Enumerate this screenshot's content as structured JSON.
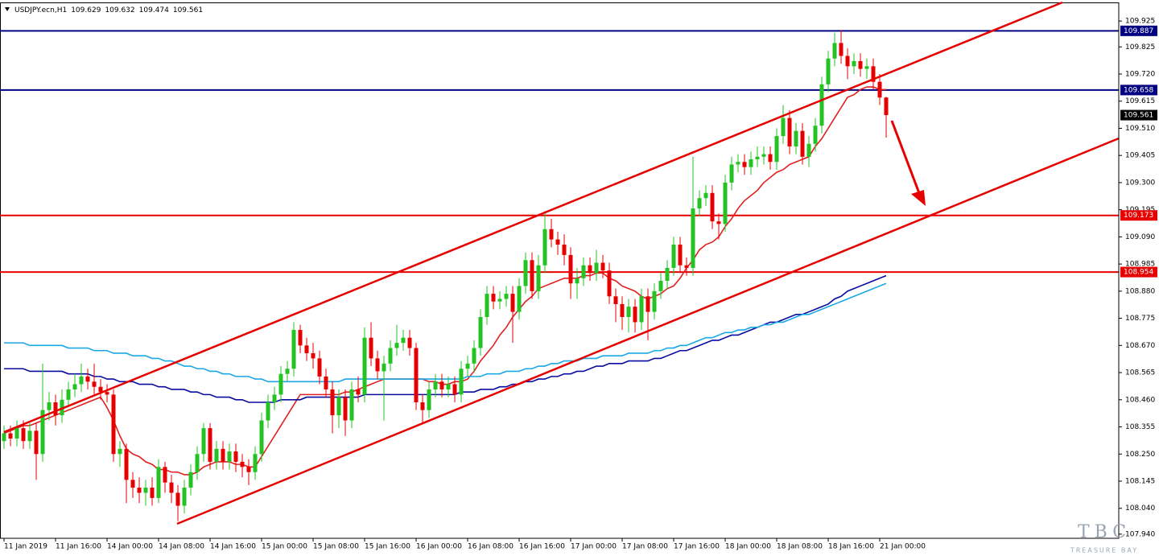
{
  "chart_data": {
    "type": "candlestick",
    "title": "USDJPY.ecn,H1",
    "categories": [
      "11 Jan 2019",
      null,
      null,
      null,
      null,
      null,
      null,
      null,
      "11 Jan 16:00",
      null,
      null,
      null,
      null,
      null,
      null,
      null,
      "14 Jan 00:00",
      null,
      null,
      null,
      null,
      null,
      null,
      null,
      "14 Jan 08:00",
      null,
      null,
      null,
      null,
      null,
      null,
      null,
      "14 Jan 16:00",
      null,
      null,
      null,
      null,
      null,
      null,
      null,
      "15 Jan 00:00",
      null,
      null,
      null,
      null,
      null,
      null,
      null,
      "15 Jan 08:00",
      null,
      null,
      null,
      null,
      null,
      null,
      null,
      "15 Jan 16:00",
      null,
      null,
      null,
      null,
      null,
      null,
      null,
      "16 Jan 00:00",
      null,
      null,
      null,
      null,
      null,
      null,
      null,
      "16 Jan 08:00",
      null,
      null,
      null,
      null,
      null,
      null,
      null,
      "16 Jan 16:00",
      null,
      null,
      null,
      null,
      null,
      null,
      null,
      "17 Jan 00:00",
      null,
      null,
      null,
      null,
      null,
      null,
      null,
      "17 Jan 08:00",
      null,
      null,
      null,
      null,
      null,
      null,
      null,
      "17 Jan 16:00",
      null,
      null,
      null,
      null,
      null,
      null,
      null,
      "18 Jan 00:00",
      null,
      null,
      null,
      null,
      null,
      null,
      null,
      "18 Jan 08:00",
      null,
      null,
      null,
      null,
      null,
      null,
      null,
      "18 Jan 16:00",
      null,
      null,
      null,
      null,
      null,
      null,
      null,
      "21 Jan 00:00",
      null
    ],
    "open": [
      108.3,
      108.33,
      108.31,
      108.35,
      108.3,
      108.34,
      108.25,
      108.42,
      108.45,
      108.4,
      108.46,
      108.5,
      108.52,
      108.55,
      108.53,
      108.51,
      108.49,
      108.48,
      108.25,
      108.27,
      108.15,
      108.12,
      108.1,
      108.12,
      108.08,
      108.2,
      108.14,
      108.1,
      108.05,
      108.12,
      108.18,
      108.25,
      108.35,
      108.22,
      108.27,
      108.22,
      108.26,
      108.22,
      108.2,
      108.18,
      108.25,
      108.38,
      108.45,
      108.48,
      108.56,
      108.58,
      108.73,
      108.67,
      108.64,
      108.62,
      108.55,
      108.5,
      108.4,
      108.47,
      108.38,
      108.5,
      108.48,
      108.7,
      108.62,
      108.57,
      108.6,
      108.66,
      108.68,
      108.7,
      108.66,
      108.45,
      108.42,
      108.5,
      108.53,
      108.5,
      108.52,
      108.48,
      108.58,
      108.6,
      108.66,
      108.78,
      108.87,
      108.84,
      108.85,
      108.87,
      108.8,
      108.9,
      109.0,
      108.88,
      108.98,
      109.12,
      109.08,
      109.06,
      109.02,
      108.91,
      108.93,
      108.98,
      108.95,
      108.99,
      108.96,
      108.86,
      108.83,
      108.78,
      108.82,
      108.76,
      108.86,
      108.8,
      108.88,
      108.92,
      108.97,
      109.06,
      108.98,
      108.97,
      109.2,
      109.24,
      109.26,
      109.15,
      109.14,
      109.3,
      109.37,
      109.38,
      109.36,
      109.39,
      109.4,
      109.41,
      109.38,
      109.48,
      109.55,
      109.44,
      109.5,
      109.4,
      109.45,
      109.52,
      109.68,
      109.78,
      109.84,
      109.79,
      109.75,
      109.77,
      109.74,
      109.75,
      109.69,
      109.629
    ],
    "high": [
      108.36,
      108.36,
      108.38,
      108.38,
      108.37,
      108.37,
      108.6,
      108.49,
      108.48,
      108.5,
      108.53,
      108.56,
      108.6,
      108.58,
      108.6,
      108.54,
      108.52,
      108.5,
      108.3,
      108.29,
      108.18,
      108.16,
      108.15,
      108.16,
      108.23,
      108.22,
      108.17,
      108.13,
      108.15,
      108.21,
      108.28,
      108.37,
      108.37,
      108.3,
      108.3,
      108.29,
      108.29,
      108.25,
      108.23,
      108.28,
      108.41,
      108.48,
      108.51,
      108.59,
      108.61,
      108.76,
      108.75,
      108.7,
      108.68,
      108.65,
      108.58,
      108.53,
      108.5,
      108.5,
      108.53,
      108.55,
      108.74,
      108.76,
      108.65,
      108.63,
      108.69,
      108.75,
      108.73,
      108.73,
      108.68,
      108.48,
      108.53,
      108.56,
      108.56,
      108.55,
      108.55,
      108.61,
      108.63,
      108.69,
      108.81,
      108.9,
      108.9,
      108.88,
      108.9,
      108.9,
      108.93,
      109.03,
      109.03,
      109.02,
      109.19,
      109.16,
      109.11,
      109.1,
      109.05,
      108.97,
      109.01,
      109.01,
      109.04,
      109.02,
      108.99,
      108.89,
      108.86,
      108.85,
      108.85,
      108.89,
      108.89,
      108.91,
      108.95,
      109.0,
      109.09,
      109.09,
      109.01,
      109.4,
      109.27,
      109.29,
      109.29,
      109.18,
      109.33,
      109.4,
      109.41,
      109.41,
      109.42,
      109.44,
      109.44,
      109.44,
      109.51,
      109.6,
      109.58,
      109.53,
      109.53,
      109.48,
      109.55,
      109.71,
      109.81,
      109.88,
      109.89,
      109.82,
      109.8,
      109.8,
      109.78,
      109.78,
      109.72,
      109.632
    ],
    "low": [
      108.27,
      108.28,
      108.28,
      108.27,
      108.27,
      108.15,
      108.22,
      108.38,
      108.36,
      108.37,
      108.43,
      108.47,
      108.49,
      108.5,
      108.48,
      108.46,
      108.45,
      108.22,
      108.2,
      108.06,
      108.08,
      108.06,
      108.05,
      108.05,
      108.06,
      108.1,
      108.06,
      107.99,
      108.02,
      108.09,
      108.15,
      108.22,
      108.19,
      108.19,
      108.19,
      108.19,
      108.18,
      108.16,
      108.13,
      108.15,
      108.22,
      108.35,
      108.42,
      108.45,
      108.53,
      108.55,
      108.64,
      108.61,
      108.58,
      108.52,
      108.47,
      108.33,
      108.35,
      108.32,
      108.35,
      108.45,
      108.45,
      108.59,
      108.54,
      108.38,
      108.57,
      108.63,
      108.65,
      108.63,
      108.42,
      108.37,
      108.39,
      108.47,
      108.47,
      108.47,
      108.45,
      108.45,
      108.55,
      108.57,
      108.63,
      108.75,
      108.81,
      108.81,
      108.82,
      108.68,
      108.77,
      108.87,
      108.85,
      108.85,
      108.95,
      109.05,
      109.02,
      108.98,
      108.85,
      108.85,
      108.9,
      108.92,
      108.92,
      108.93,
      108.83,
      108.76,
      108.73,
      108.72,
      108.72,
      108.73,
      108.69,
      108.77,
      108.85,
      108.89,
      108.94,
      108.95,
      108.94,
      108.94,
      109.17,
      109.21,
      109.12,
      109.08,
      109.11,
      109.27,
      109.34,
      109.33,
      109.33,
      109.36,
      109.37,
      109.35,
      109.35,
      109.45,
      109.41,
      109.41,
      109.37,
      109.36,
      109.42,
      109.49,
      109.65,
      109.75,
      109.76,
      109.7,
      109.72,
      109.71,
      109.7,
      109.66,
      109.6,
      109.474
    ],
    "close": [
      108.33,
      108.31,
      108.35,
      108.3,
      108.34,
      108.25,
      108.42,
      108.45,
      108.4,
      108.46,
      108.5,
      108.52,
      108.55,
      108.53,
      108.51,
      108.49,
      108.48,
      108.25,
      108.27,
      108.15,
      108.12,
      108.1,
      108.12,
      108.08,
      108.2,
      108.14,
      108.1,
      108.05,
      108.12,
      108.18,
      108.25,
      108.35,
      108.22,
      108.27,
      108.22,
      108.26,
      108.22,
      108.2,
      108.18,
      108.25,
      108.38,
      108.45,
      108.48,
      108.56,
      108.58,
      108.73,
      108.67,
      108.64,
      108.62,
      108.55,
      108.5,
      108.4,
      108.47,
      108.38,
      108.5,
      108.48,
      108.7,
      108.62,
      108.57,
      108.6,
      108.66,
      108.68,
      108.7,
      108.66,
      108.45,
      108.42,
      108.5,
      108.53,
      108.5,
      108.52,
      108.48,
      108.58,
      108.6,
      108.66,
      108.78,
      108.87,
      108.84,
      108.85,
      108.87,
      108.8,
      108.9,
      109.0,
      108.88,
      108.98,
      109.12,
      109.08,
      109.06,
      109.02,
      108.91,
      108.93,
      108.98,
      108.95,
      108.99,
      108.96,
      108.86,
      108.83,
      108.78,
      108.82,
      108.76,
      108.86,
      108.8,
      108.88,
      108.92,
      108.97,
      109.06,
      108.98,
      108.97,
      109.2,
      109.24,
      109.26,
      109.15,
      109.14,
      109.3,
      109.37,
      109.38,
      109.36,
      109.39,
      109.4,
      109.41,
      109.38,
      109.48,
      109.55,
      109.44,
      109.5,
      109.4,
      109.45,
      109.52,
      109.68,
      109.78,
      109.84,
      109.79,
      109.75,
      109.77,
      109.74,
      109.75,
      109.69,
      109.629,
      109.561
    ],
    "up_color": "#22c322",
    "down_color": "#e60000",
    "lines": [
      {
        "color": "#e02020",
        "values": [
          108.33,
          108.34,
          108.35,
          108.36,
          108.36,
          108.37,
          108.38,
          108.39,
          108.4,
          108.41,
          108.42,
          108.43,
          108.44,
          108.45,
          108.46,
          108.47,
          108.43,
          108.38,
          108.32,
          108.27,
          108.25,
          108.24,
          108.22,
          108.21,
          108.19,
          108.19,
          108.18,
          108.18,
          108.17,
          108.17,
          108.18,
          108.2,
          108.21,
          108.22,
          108.22,
          108.22,
          108.21,
          108.21,
          108.2,
          108.2,
          108.24,
          108.28,
          108.32,
          108.36,
          108.4,
          108.44,
          108.48,
          108.48,
          108.48,
          108.48,
          108.48,
          108.48,
          108.48,
          108.49,
          108.49,
          108.5,
          108.51,
          108.52,
          108.53,
          108.54,
          108.54,
          108.54,
          108.54,
          108.54,
          108.54,
          108.54,
          108.53,
          108.53,
          108.52,
          108.52,
          108.53,
          108.53,
          108.54,
          108.57,
          108.61,
          108.64,
          108.67,
          108.71,
          108.74,
          108.78,
          108.81,
          108.84,
          108.86,
          108.89,
          108.9,
          108.91,
          108.92,
          108.93,
          108.93,
          108.93,
          108.94,
          108.94,
          108.95,
          108.95,
          108.93,
          108.92,
          108.9,
          108.89,
          108.88,
          108.86,
          108.85,
          108.86,
          108.87,
          108.89,
          108.9,
          108.93,
          108.97,
          109.0,
          109.04,
          109.06,
          109.07,
          109.09,
          109.13,
          109.16,
          109.2,
          109.23,
          109.25,
          109.27,
          109.3,
          109.32,
          109.34,
          109.35,
          109.37,
          109.38,
          109.39,
          109.4,
          109.44,
          109.47,
          109.51,
          109.55,
          109.59,
          109.63,
          109.64,
          109.66,
          109.67,
          109.67,
          109.66,
          109.66
        ]
      },
      {
        "color": "#0a0aa0",
        "values": [
          108.58,
          108.58,
          108.58,
          108.58,
          108.57,
          108.57,
          108.57,
          108.57,
          108.57,
          108.57,
          108.56,
          108.56,
          108.56,
          108.56,
          108.55,
          108.55,
          108.54,
          108.54,
          108.53,
          108.53,
          108.53,
          108.52,
          108.52,
          108.52,
          108.51,
          108.51,
          108.5,
          108.5,
          108.5,
          108.49,
          108.49,
          108.48,
          108.48,
          108.47,
          108.47,
          108.47,
          108.46,
          108.46,
          108.45,
          108.45,
          108.45,
          108.45,
          108.45,
          108.46,
          108.46,
          108.46,
          108.46,
          108.47,
          108.47,
          108.47,
          108.47,
          108.47,
          108.47,
          108.47,
          108.47,
          108.47,
          108.48,
          108.48,
          108.48,
          108.48,
          108.48,
          108.48,
          108.48,
          108.48,
          108.48,
          108.48,
          108.48,
          108.48,
          108.48,
          108.48,
          108.48,
          108.49,
          108.49,
          108.49,
          108.5,
          108.5,
          108.5,
          108.51,
          108.51,
          108.52,
          108.52,
          108.53,
          108.53,
          108.54,
          108.54,
          108.55,
          108.55,
          108.56,
          108.56,
          108.57,
          108.57,
          108.58,
          108.59,
          108.59,
          108.6,
          108.6,
          108.6,
          108.61,
          108.61,
          108.61,
          108.61,
          108.62,
          108.62,
          108.63,
          108.64,
          108.65,
          108.65,
          108.66,
          108.67,
          108.68,
          108.69,
          108.69,
          108.7,
          108.71,
          108.71,
          108.72,
          108.73,
          108.74,
          108.75,
          108.76,
          108.76,
          108.77,
          108.78,
          108.79,
          108.79,
          108.8,
          108.81,
          108.82,
          108.83,
          108.85,
          108.86,
          108.88,
          108.89,
          108.9,
          108.91,
          108.92,
          108.93,
          108.94
        ]
      },
      {
        "color": "#1aa8e6",
        "values": [
          108.68,
          108.68,
          108.68,
          108.68,
          108.67,
          108.67,
          108.67,
          108.67,
          108.67,
          108.67,
          108.66,
          108.66,
          108.66,
          108.66,
          108.65,
          108.65,
          108.65,
          108.64,
          108.64,
          108.64,
          108.63,
          108.63,
          108.63,
          108.62,
          108.62,
          108.61,
          108.61,
          108.6,
          108.59,
          108.59,
          108.58,
          108.58,
          108.57,
          108.57,
          108.56,
          108.56,
          108.55,
          108.55,
          108.55,
          108.54,
          108.54,
          108.53,
          108.53,
          108.53,
          108.53,
          108.53,
          108.53,
          108.53,
          108.53,
          108.53,
          108.53,
          108.53,
          108.53,
          108.54,
          108.54,
          108.54,
          108.54,
          108.54,
          108.54,
          108.54,
          108.54,
          108.54,
          108.54,
          108.54,
          108.54,
          108.54,
          108.54,
          108.54,
          108.54,
          108.54,
          108.54,
          108.54,
          108.55,
          108.55,
          108.55,
          108.56,
          108.56,
          108.56,
          108.57,
          108.57,
          108.57,
          108.58,
          108.58,
          108.59,
          108.59,
          108.6,
          108.6,
          108.61,
          108.61,
          108.61,
          108.62,
          108.62,
          108.62,
          108.63,
          108.63,
          108.63,
          108.63,
          108.64,
          108.64,
          108.64,
          108.64,
          108.65,
          108.65,
          108.66,
          108.66,
          108.67,
          108.67,
          108.68,
          108.69,
          108.7,
          108.7,
          108.71,
          108.72,
          108.72,
          108.73,
          108.73,
          108.74,
          108.74,
          108.75,
          108.75,
          108.76,
          108.76,
          108.77,
          108.78,
          108.79,
          108.79,
          108.8,
          108.81,
          108.82,
          108.83,
          108.84,
          108.85,
          108.86,
          108.87,
          108.88,
          108.89,
          108.9,
          108.91
        ]
      }
    ],
    "levels": [
      {
        "value": 109.887,
        "color": "#000080"
      },
      {
        "value": 109.658,
        "color": "#000080"
      },
      {
        "value": 109.173,
        "color": "#e60000"
      },
      {
        "value": 108.954,
        "color": "#e60000"
      }
    ],
    "ylim": [
      107.924,
      109.997
    ],
    "yticks": [
      109.925,
      109.825,
      {
        "value": 109.72,
        "label": "109.720"
      },
      109.615,
      {
        "value": 109.51,
        "label": "109.510"
      },
      109.405,
      {
        "value": 109.3,
        "label": "109.300"
      },
      109.195,
      {
        "value": 109.09,
        "label": "109.090"
      },
      108.985,
      {
        "value": 108.88,
        "label": "108.880"
      },
      108.775,
      {
        "value": 108.67,
        "label": "108.670"
      },
      108.565,
      {
        "value": 108.46,
        "label": "108.460"
      },
      108.355,
      {
        "value": 108.25,
        "label": "108.250"
      },
      108.145,
      {
        "value": 108.04,
        "label": "108.040"
      },
      {
        "value": 107.94,
        "label": "107.940"
      }
    ],
    "watermark": "TBC",
    "watermark_sub": "TREASURE BAY"
  }
}
